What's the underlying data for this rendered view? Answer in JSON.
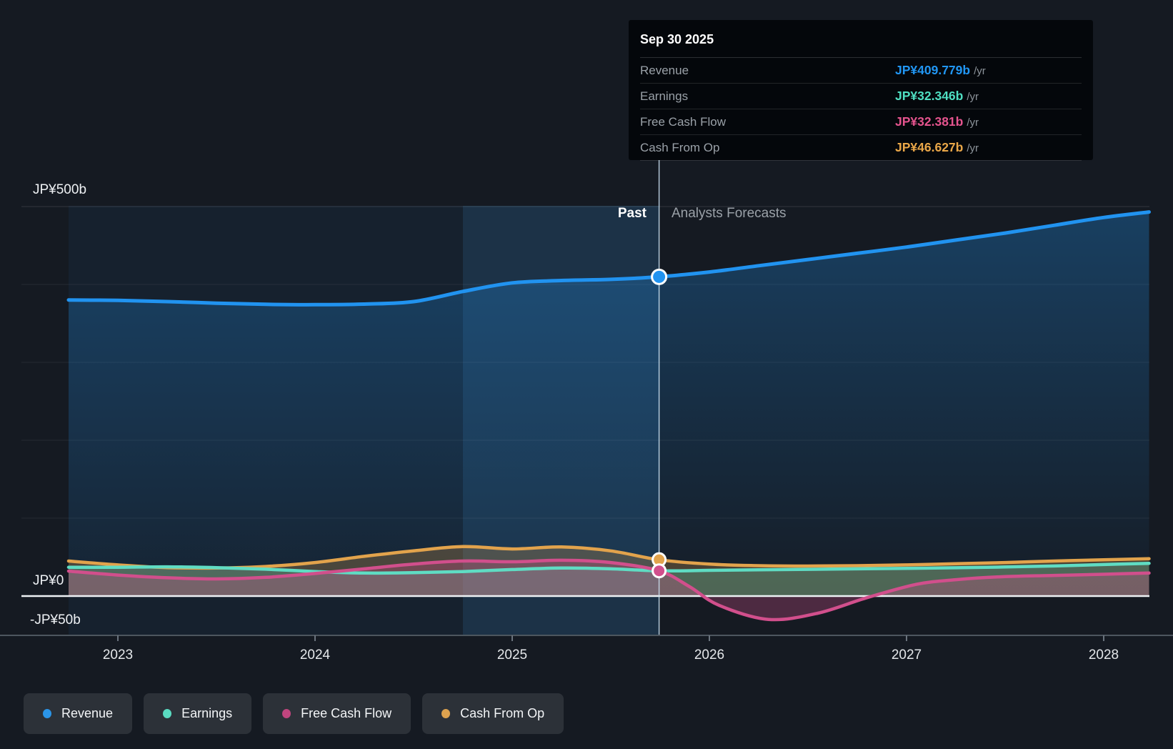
{
  "tooltip": {
    "title": "Sep 30 2025",
    "rows": [
      {
        "label": "Revenue",
        "value": "JP¥409.779b",
        "unit": "/yr",
        "color": "#2196f3"
      },
      {
        "label": "Earnings",
        "value": "JP¥32.346b",
        "unit": "/yr",
        "color": "#4fdfc2"
      },
      {
        "label": "Free Cash Flow",
        "value": "JP¥32.381b",
        "unit": "/yr",
        "color": "#e5548e"
      },
      {
        "label": "Cash From Op",
        "value": "JP¥46.627b",
        "unit": "/yr",
        "color": "#eaa748"
      }
    ]
  },
  "zones": {
    "past_label": "Past",
    "forecast_label": "Analysts Forecasts"
  },
  "legend": [
    {
      "label": "Revenue",
      "color": "#2b95e8"
    },
    {
      "label": "Earnings",
      "color": "#5adbc1"
    },
    {
      "label": "Free Cash Flow",
      "color": "#c0457e"
    },
    {
      "label": "Cash From Op",
      "color": "#dda24f"
    }
  ],
  "chart_data": {
    "type": "area-line",
    "unit": "JP¥ billions per year",
    "x_domain": [
      2022.75,
      2028.23
    ],
    "x_ticks": [
      2023,
      2024,
      2025,
      2026,
      2027,
      2028
    ],
    "ylim": [
      -50,
      517
    ],
    "y_gridlines_b": [
      0,
      100,
      200,
      300,
      400,
      500
    ],
    "y_axis_labels": {
      "top": "JP¥500b",
      "zero": "JP¥0",
      "bottom": "-JP¥50b"
    },
    "divider_x": 2025.745,
    "highlight_range": [
      2024.75,
      2025.745
    ],
    "grid": "horizontal-only",
    "legend_position": "bottom-left",
    "series": [
      {
        "name": "Revenue",
        "color": "#2193f0",
        "width": 5,
        "marker": {
          "x": 2025.745,
          "value": 409.779
        },
        "points": [
          [
            2022.75,
            380
          ],
          [
            2023,
            379.5
          ],
          [
            2023.25,
            378
          ],
          [
            2023.5,
            376
          ],
          [
            2023.75,
            374.5
          ],
          [
            2024,
            374
          ],
          [
            2024.25,
            374.8
          ],
          [
            2024.5,
            378
          ],
          [
            2024.75,
            391
          ],
          [
            2025,
            402
          ],
          [
            2025.25,
            405
          ],
          [
            2025.5,
            406.5
          ],
          [
            2025.745,
            409.779
          ],
          [
            2026,
            416
          ],
          [
            2026.25,
            424
          ],
          [
            2026.5,
            432
          ],
          [
            2026.75,
            440
          ],
          [
            2027,
            448
          ],
          [
            2027.25,
            457
          ],
          [
            2027.5,
            466
          ],
          [
            2027.75,
            476
          ],
          [
            2028,
            486
          ],
          [
            2028.23,
            493
          ]
        ]
      },
      {
        "name": "Cash From Op",
        "color": "#e2a34c",
        "width": 4.5,
        "marker": {
          "x": 2025.745,
          "value": 46.627
        },
        "points": [
          [
            2022.75,
            45
          ],
          [
            2023,
            40
          ],
          [
            2023.25,
            36.5
          ],
          [
            2023.5,
            36
          ],
          [
            2023.75,
            38
          ],
          [
            2024,
            43
          ],
          [
            2024.25,
            51
          ],
          [
            2024.5,
            58
          ],
          [
            2024.75,
            63.5
          ],
          [
            2025,
            60.5
          ],
          [
            2025.25,
            63
          ],
          [
            2025.5,
            58
          ],
          [
            2025.745,
            46.627
          ],
          [
            2026,
            41
          ],
          [
            2026.25,
            39
          ],
          [
            2026.5,
            38.5
          ],
          [
            2026.75,
            39
          ],
          [
            2027,
            40
          ],
          [
            2027.25,
            41.5
          ],
          [
            2027.5,
            43
          ],
          [
            2027.75,
            45
          ],
          [
            2028,
            46.5
          ],
          [
            2028.23,
            48
          ]
        ]
      },
      {
        "name": "Earnings",
        "color": "#5fdcc3",
        "width": 4.5,
        "marker": null,
        "points": [
          [
            2022.75,
            37
          ],
          [
            2023,
            37
          ],
          [
            2023.25,
            37.5
          ],
          [
            2023.5,
            36.5
          ],
          [
            2023.75,
            34.5
          ],
          [
            2024,
            31.5
          ],
          [
            2024.25,
            29.5
          ],
          [
            2024.5,
            30
          ],
          [
            2024.75,
            31.5
          ],
          [
            2025,
            34
          ],
          [
            2025.25,
            36
          ],
          [
            2025.5,
            35
          ],
          [
            2025.745,
            32.346
          ],
          [
            2026,
            33
          ],
          [
            2026.25,
            33.7
          ],
          [
            2026.5,
            34.3
          ],
          [
            2026.75,
            35
          ],
          [
            2027,
            35.6
          ],
          [
            2027.25,
            36.3
          ],
          [
            2027.5,
            37.3
          ],
          [
            2027.75,
            38.6
          ],
          [
            2028,
            40.5
          ],
          [
            2028.23,
            42
          ]
        ]
      },
      {
        "name": "Free Cash Flow",
        "color": "#d14f8c",
        "width": 4.5,
        "marker": {
          "x": 2025.745,
          "value": 32.381
        },
        "points": [
          [
            2022.75,
            32
          ],
          [
            2023,
            27
          ],
          [
            2023.25,
            23.5
          ],
          [
            2023.5,
            22
          ],
          [
            2023.75,
            24
          ],
          [
            2024,
            29
          ],
          [
            2024.25,
            35
          ],
          [
            2024.5,
            41
          ],
          [
            2024.75,
            45
          ],
          [
            2025,
            44
          ],
          [
            2025.25,
            46
          ],
          [
            2025.5,
            43
          ],
          [
            2025.745,
            32.381
          ],
          [
            2025.9,
            12
          ],
          [
            2026.05,
            -12
          ],
          [
            2026.3,
            -30
          ],
          [
            2026.55,
            -22
          ],
          [
            2026.8,
            -2
          ],
          [
            2027.05,
            15
          ],
          [
            2027.25,
            21
          ],
          [
            2027.5,
            25
          ],
          [
            2027.75,
            26.5
          ],
          [
            2028,
            28
          ],
          [
            2028.23,
            29.5
          ]
        ]
      }
    ]
  }
}
